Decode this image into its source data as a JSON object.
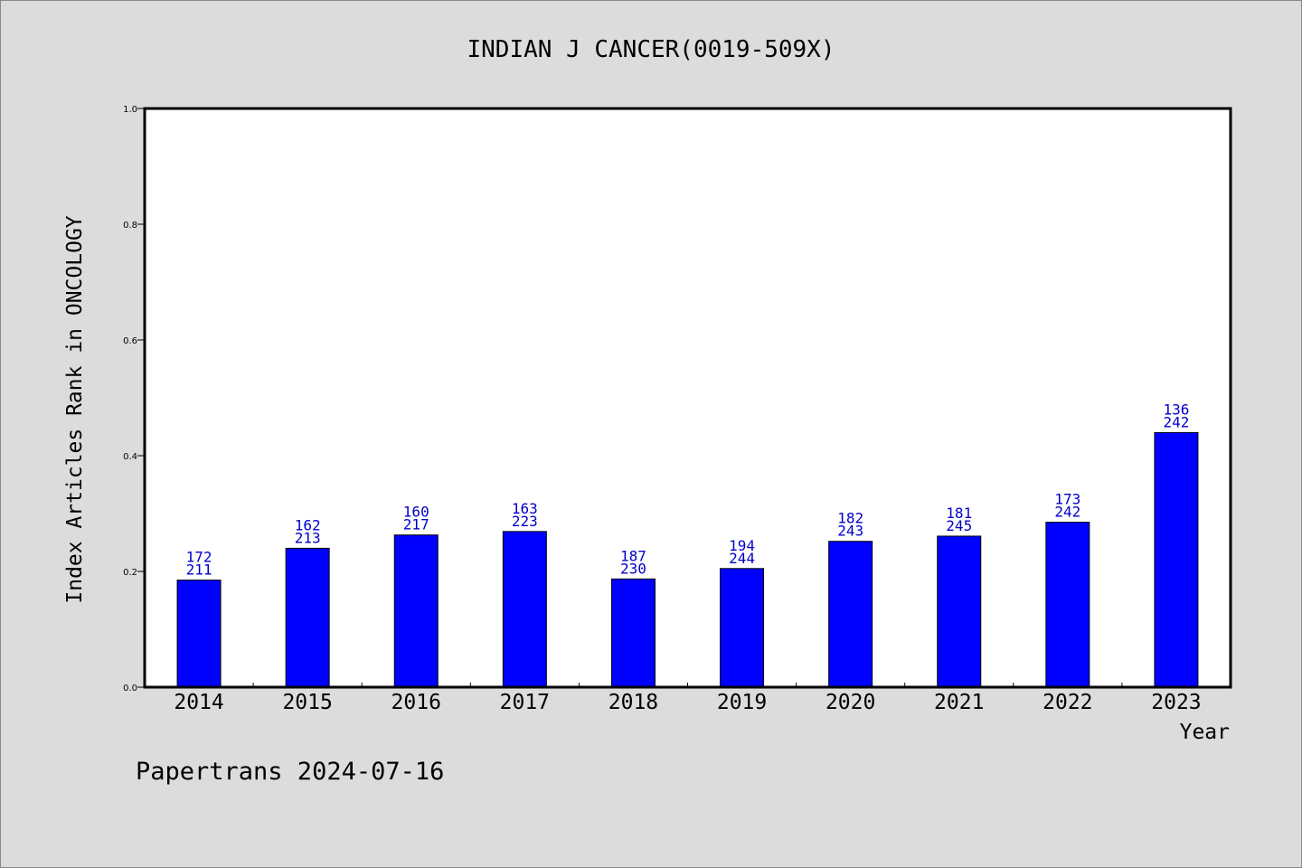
{
  "chart_data": {
    "type": "bar",
    "title": "INDIAN J CANCER(0019-509X)",
    "xlabel": "Year",
    "ylabel": "Index Articles Rank in ONCOLOGY",
    "ylim": [
      0,
      1.0
    ],
    "yticks": [
      "0.0",
      "0.2",
      "0.4",
      "0.6",
      "0.8",
      "1.0"
    ],
    "categories": [
      "2014",
      "2015",
      "2016",
      "2017",
      "2018",
      "2019",
      "2020",
      "2021",
      "2022",
      "2023"
    ],
    "values": [
      0.185,
      0.24,
      0.263,
      0.269,
      0.187,
      0.205,
      0.252,
      0.261,
      0.285,
      0.44
    ],
    "labels_top": [
      "172",
      "162",
      "160",
      "163",
      "187",
      "194",
      "182",
      "181",
      "173",
      "136"
    ],
    "labels_bottom": [
      "211",
      "213",
      "217",
      "223",
      "230",
      "244",
      "243",
      "245",
      "242",
      "242"
    ],
    "bar_color": "#0000ff",
    "label_color": "#0000cc",
    "grid": false
  },
  "footer": "Papertrans 2024-07-16"
}
